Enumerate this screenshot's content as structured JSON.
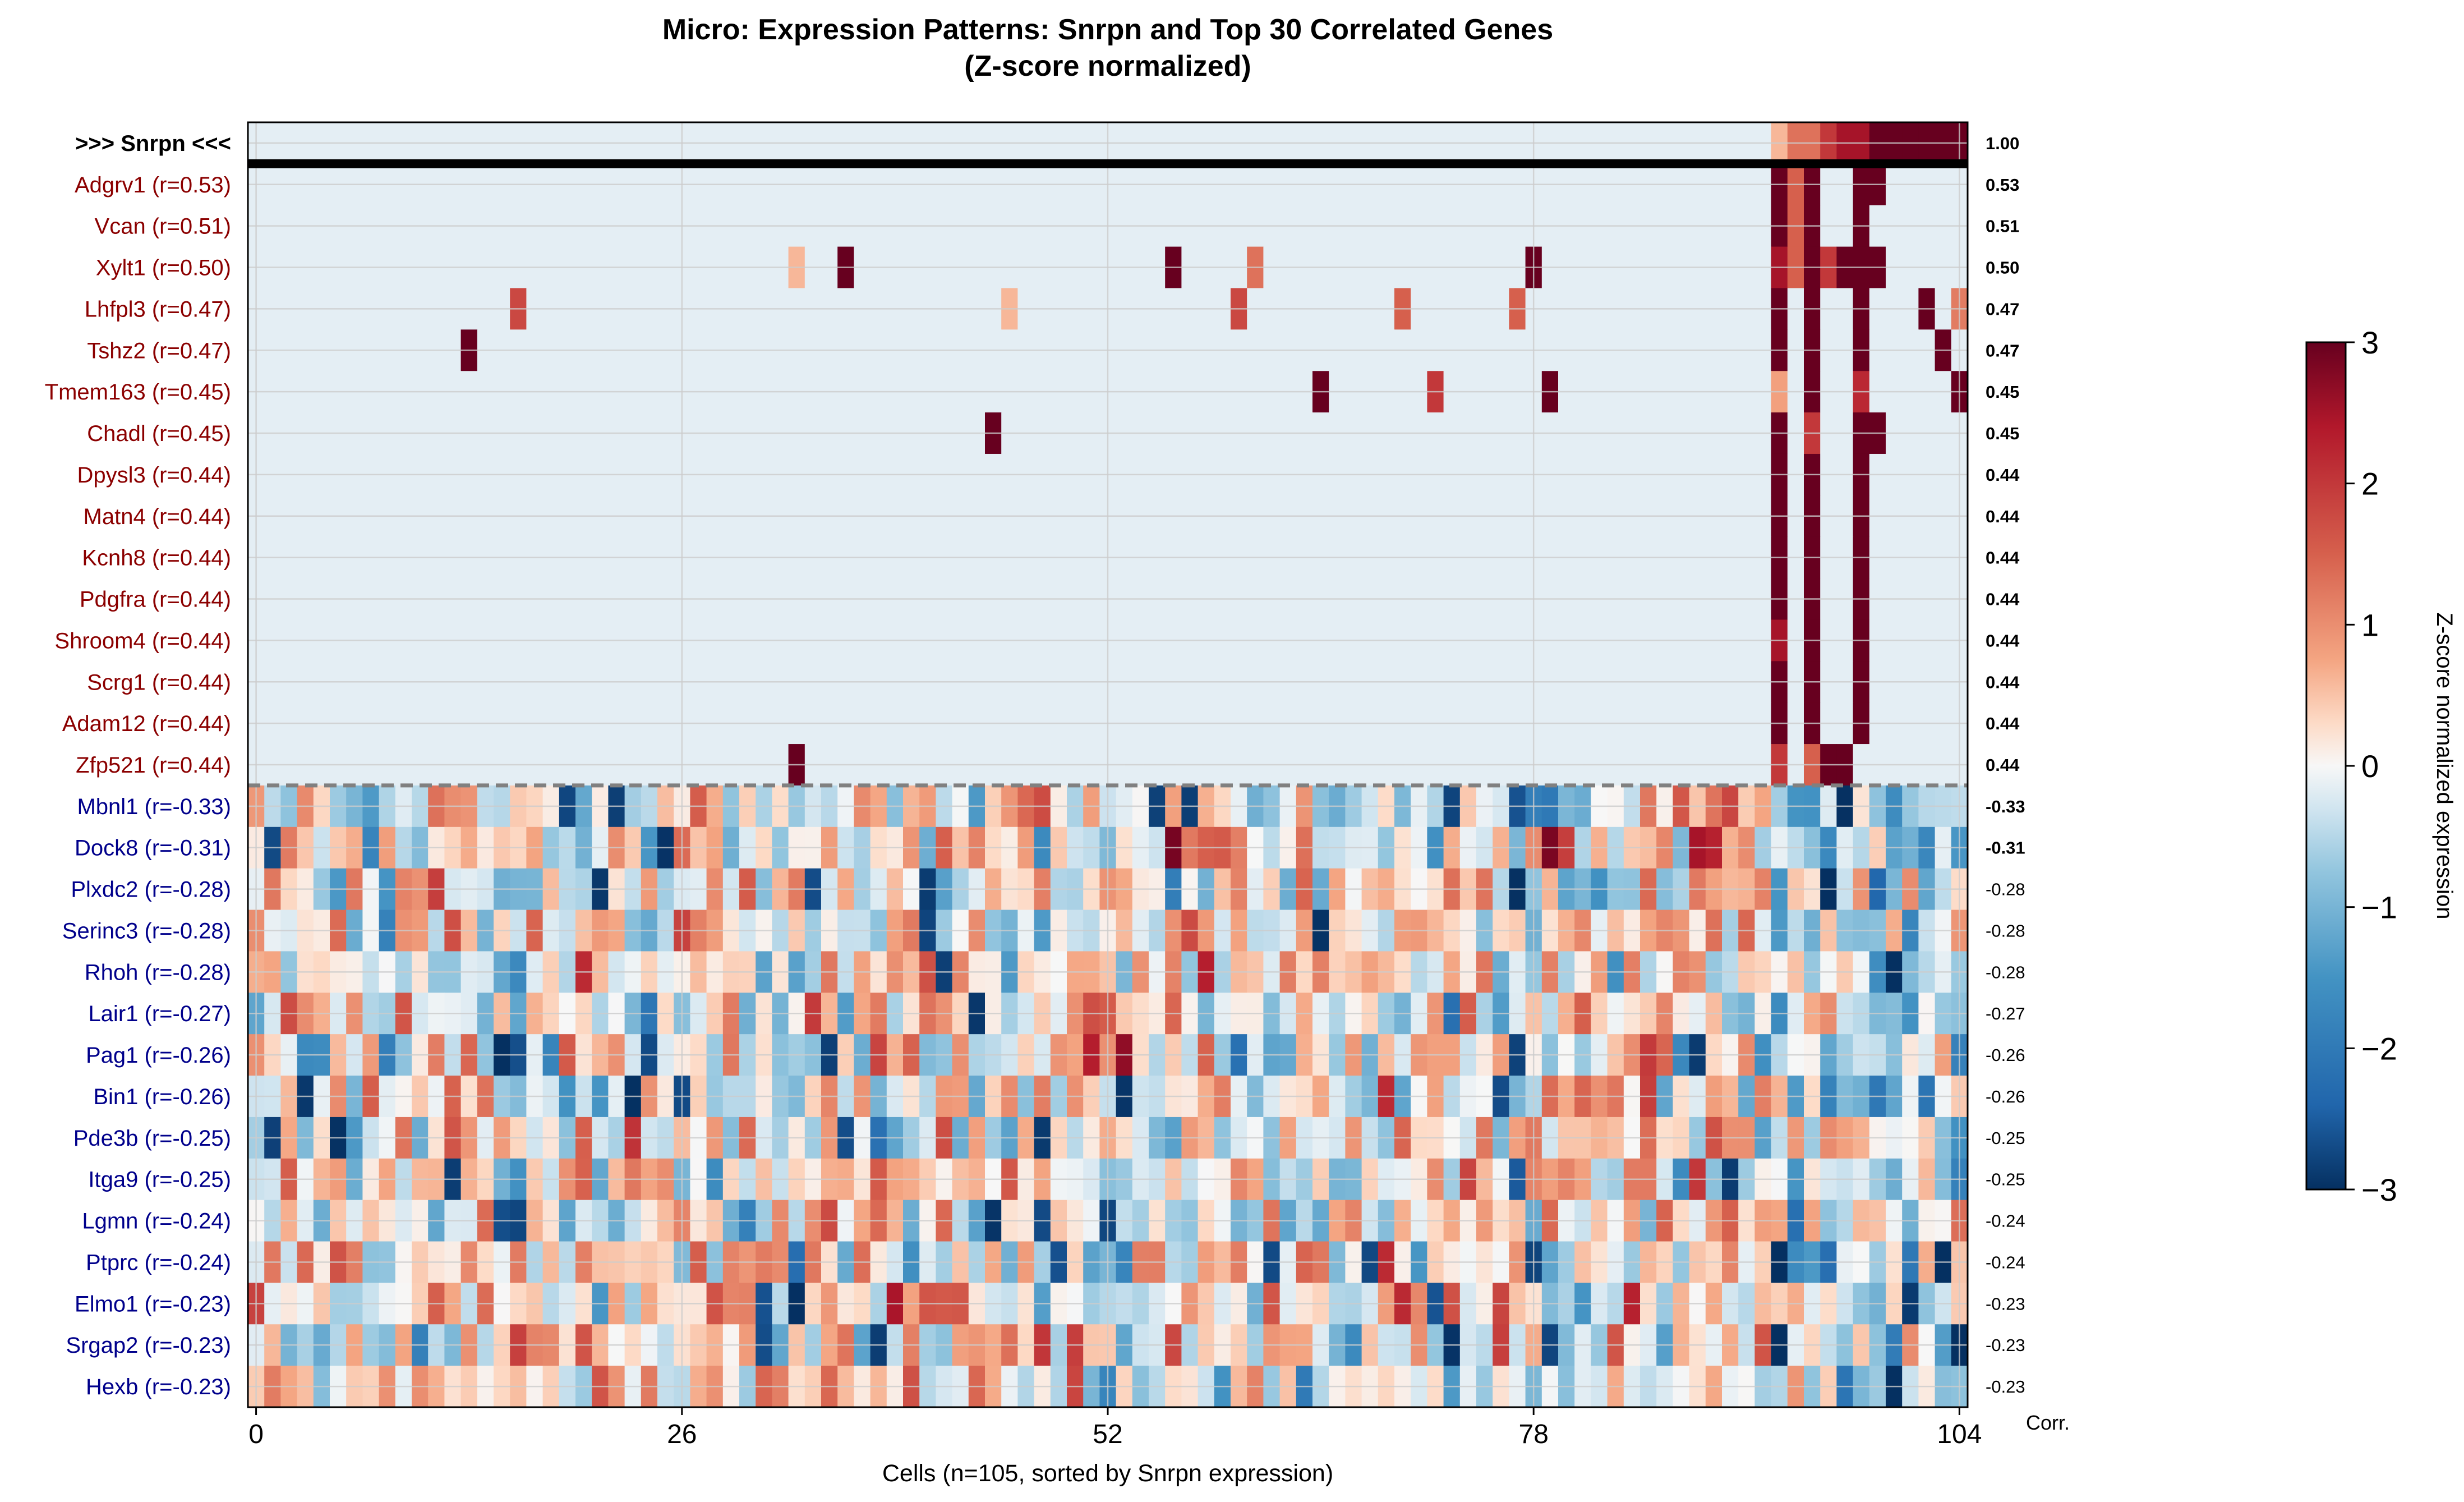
{
  "chart_data": {
    "type": "heatmap",
    "title": "Micro: Expression Patterns: Snrpn and Top 30 Correlated Genes",
    "subtitle": "(Z-score normalized)",
    "xlabel": "Cells (n=105, sorted by Snrpn expression)",
    "x_ticks": [
      0,
      26,
      52,
      78,
      104
    ],
    "n_cells": 105,
    "corr_header": "Corr.",
    "colorbar": {
      "label": "Z-score normalized expression",
      "ticks": [
        3,
        2,
        1,
        0,
        -1,
        -2,
        -3
      ],
      "tick_labels": [
        "3",
        "2",
        "1",
        "0",
        "−1",
        "−2",
        "−3"
      ],
      "range": [
        -3,
        3
      ],
      "colormap": "RdBu_r"
    },
    "colors": {
      "positive_label": "#8b0000",
      "negative_label": "#00008b",
      "target_label": "#000000",
      "grid": "#cccccc",
      "separator": "#808080"
    },
    "target_gene": {
      "name": "Snrpn",
      "label": ">>> Snrpn <<<",
      "corr": "1.00"
    },
    "positive_genes": [
      {
        "label": "Adgrv1 (r=0.53)",
        "corr": "0.53"
      },
      {
        "label": "Vcan (r=0.51)",
        "corr": "0.51"
      },
      {
        "label": "Xylt1 (r=0.50)",
        "corr": "0.50"
      },
      {
        "label": "Lhfpl3 (r=0.47)",
        "corr": "0.47"
      },
      {
        "label": "Tshz2 (r=0.47)",
        "corr": "0.47"
      },
      {
        "label": "Tmem163 (r=0.45)",
        "corr": "0.45"
      },
      {
        "label": "Chadl (r=0.45)",
        "corr": "0.45"
      },
      {
        "label": "Dpysl3 (r=0.44)",
        "corr": "0.44"
      },
      {
        "label": "Matn4 (r=0.44)",
        "corr": "0.44"
      },
      {
        "label": "Kcnh8 (r=0.44)",
        "corr": "0.44"
      },
      {
        "label": "Pdgfra (r=0.44)",
        "corr": "0.44"
      },
      {
        "label": "Shroom4 (r=0.44)",
        "corr": "0.44"
      },
      {
        "label": "Scrg1 (r=0.44)",
        "corr": "0.44"
      },
      {
        "label": "Adam12 (r=0.44)",
        "corr": "0.44"
      },
      {
        "label": "Zfp521 (r=0.44)",
        "corr": "0.44"
      }
    ],
    "negative_genes": [
      {
        "label": "Mbnl1 (r=-0.33)",
        "corr": "-0.33"
      },
      {
        "label": "Dock8 (r=-0.31)",
        "corr": "-0.31"
      },
      {
        "label": "Plxdc2 (r=-0.28)",
        "corr": "-0.28"
      },
      {
        "label": "Serinc3 (r=-0.28)",
        "corr": "-0.28"
      },
      {
        "label": "Rhoh (r=-0.28)",
        "corr": "-0.28"
      },
      {
        "label": "Lair1 (r=-0.27)",
        "corr": "-0.27"
      },
      {
        "label": "Pag1 (r=-0.26)",
        "corr": "-0.26"
      },
      {
        "label": "Bin1 (r=-0.26)",
        "corr": "-0.26"
      },
      {
        "label": "Pde3b (r=-0.25)",
        "corr": "-0.25"
      },
      {
        "label": "Itga9 (r=-0.25)",
        "corr": "-0.25"
      },
      {
        "label": "Lgmn (r=-0.24)",
        "corr": "-0.24"
      },
      {
        "label": "Ptprc (r=-0.24)",
        "corr": "-0.24"
      },
      {
        "label": "Elmo1 (r=-0.23)",
        "corr": "-0.23"
      },
      {
        "label": "Srgap2 (r=-0.23)",
        "corr": "-0.23"
      },
      {
        "label": "Hexb (r=-0.23)",
        "corr": "-0.23"
      }
    ],
    "positive_baseline": -0.15,
    "snrpn_high_cells": [
      [
        93,
        0.6
      ],
      [
        94,
        1.3
      ],
      [
        95,
        1.3
      ],
      [
        96,
        2.0
      ],
      [
        97,
        2.5
      ],
      [
        98,
        2.5
      ],
      [
        99,
        3
      ],
      [
        100,
        3
      ],
      [
        101,
        3
      ],
      [
        102,
        3
      ],
      [
        103,
        3
      ],
      [
        104,
        3
      ]
    ],
    "positive_hits": [
      [
        0,
        93,
        3
      ],
      [
        0,
        95,
        3
      ],
      [
        0,
        98,
        3
      ],
      [
        0,
        99,
        3
      ],
      [
        0,
        94,
        1.5
      ],
      [
        1,
        93,
        3
      ],
      [
        1,
        94,
        1.5
      ],
      [
        1,
        95,
        3
      ],
      [
        1,
        98,
        3
      ],
      [
        2,
        33,
        0.6
      ],
      [
        2,
        36,
        3
      ],
      [
        2,
        56,
        3
      ],
      [
        2,
        61,
        1.3
      ],
      [
        2,
        78,
        3
      ],
      [
        2,
        93,
        2.5
      ],
      [
        2,
        94,
        1.5
      ],
      [
        2,
        95,
        3
      ],
      [
        2,
        96,
        2
      ],
      [
        2,
        97,
        3
      ],
      [
        2,
        98,
        3
      ],
      [
        2,
        99,
        3
      ],
      [
        3,
        16,
        1.8
      ],
      [
        3,
        46,
        0.6
      ],
      [
        3,
        60,
        1.8
      ],
      [
        3,
        70,
        1.5
      ],
      [
        3,
        77,
        1.5
      ],
      [
        3,
        93,
        3
      ],
      [
        3,
        95,
        3
      ],
      [
        3,
        98,
        3
      ],
      [
        3,
        102,
        3
      ],
      [
        3,
        104,
        1.2
      ],
      [
        4,
        13,
        3
      ],
      [
        4,
        93,
        3
      ],
      [
        4,
        95,
        3
      ],
      [
        4,
        98,
        3
      ],
      [
        4,
        103,
        3
      ],
      [
        5,
        65,
        3
      ],
      [
        5,
        72,
        2
      ],
      [
        5,
        79,
        3
      ],
      [
        5,
        93,
        0.8
      ],
      [
        5,
        95,
        3
      ],
      [
        5,
        98,
        2.2
      ],
      [
        5,
        104,
        3
      ],
      [
        6,
        45,
        3
      ],
      [
        6,
        93,
        3
      ],
      [
        6,
        95,
        2
      ],
      [
        6,
        98,
        3
      ],
      [
        6,
        99,
        3
      ],
      [
        7,
        93,
        3
      ],
      [
        7,
        95,
        3
      ],
      [
        7,
        98,
        3
      ],
      [
        8,
        93,
        3
      ],
      [
        8,
        95,
        3
      ],
      [
        8,
        98,
        3
      ],
      [
        9,
        93,
        3
      ],
      [
        9,
        95,
        3
      ],
      [
        9,
        98,
        3
      ],
      [
        10,
        93,
        3
      ],
      [
        10,
        95,
        3
      ],
      [
        10,
        98,
        3
      ],
      [
        11,
        93,
        2.5
      ],
      [
        11,
        95,
        3
      ],
      [
        11,
        98,
        3
      ],
      [
        12,
        93,
        3
      ],
      [
        12,
        95,
        3
      ],
      [
        12,
        98,
        3
      ],
      [
        13,
        93,
        3
      ],
      [
        13,
        95,
        3
      ],
      [
        13,
        98,
        3
      ],
      [
        14,
        33,
        3
      ],
      [
        14,
        93,
        2
      ],
      [
        14,
        95,
        1.5
      ],
      [
        14,
        96,
        3
      ],
      [
        14,
        97,
        3
      ]
    ],
    "negative_seed": 20240611
  }
}
